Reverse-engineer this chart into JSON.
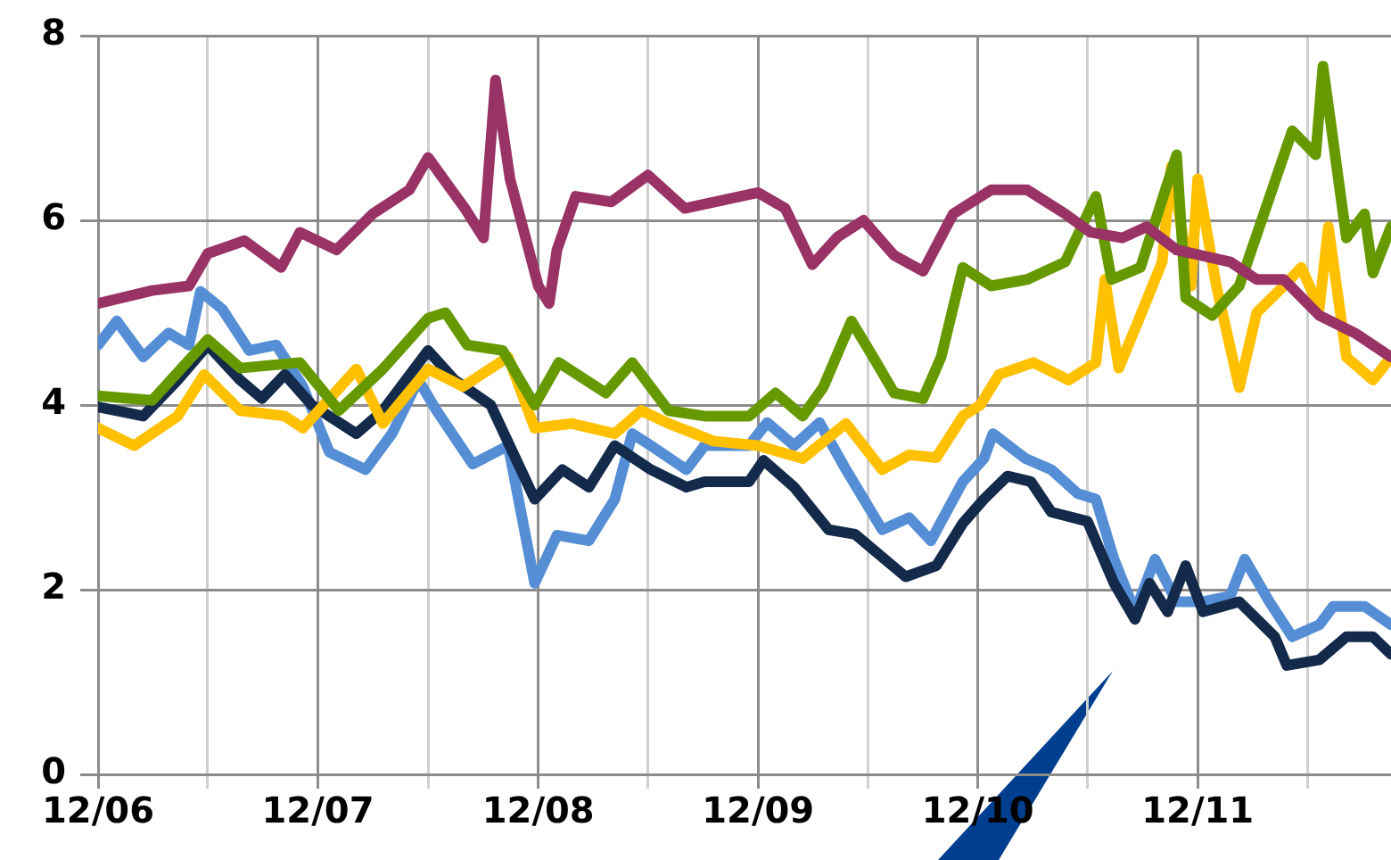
{
  "chart_data": {
    "type": "line",
    "xlim": [
      "2006-12-01",
      "2012-10-17"
    ],
    "ylim": [
      0,
      8
    ],
    "yticks": [
      0,
      2,
      4,
      6,
      8
    ],
    "xticks": [
      {
        "value": "2006-12-01",
        "label": "12/06"
      },
      {
        "value": "2007-06-01",
        "label": null
      },
      {
        "value": "2007-12-01",
        "label": "12/07"
      },
      {
        "value": "2008-06-01",
        "label": null
      },
      {
        "value": "2008-12-01",
        "label": "12/08"
      },
      {
        "value": "2009-06-01",
        "label": null
      },
      {
        "value": "2009-12-01",
        "label": "12/09"
      },
      {
        "value": "2010-06-01",
        "label": null
      },
      {
        "value": "2010-12-01",
        "label": "12/10"
      },
      {
        "value": "2011-06-01",
        "label": null
      },
      {
        "value": "2011-12-01",
        "label": "12/11"
      },
      {
        "value": "2012-06-01",
        "label": null
      }
    ],
    "grid": true,
    "legend": false,
    "marker": "none",
    "line_style": "solid",
    "series": [
      {
        "color": "#993366",
        "x": [
          "2006-12-01",
          "2007-03-01",
          "2007-05-01",
          "2007-06-01",
          "2007-08-01",
          "2007-10-01",
          "2007-11-01",
          "2008-01-01",
          "2008-03-01",
          "2008-05-01",
          "2008-06-01",
          "2008-08-01",
          "2008-09-01",
          "2008-09-21",
          "2008-10-15",
          "2008-12-01",
          "2008-12-19",
          "2009-01-01",
          "2009-02-01",
          "2009-04-01",
          "2009-06-01",
          "2009-08-01",
          "2009-12-01",
          "2010-01-15",
          "2010-03-01",
          "2010-04-12",
          "2010-05-25",
          "2010-07-15",
          "2010-09-01",
          "2010-10-21",
          "2010-12-23",
          "2011-02-21",
          "2011-04-25",
          "2011-06-06",
          "2011-07-29",
          "2011-09-07",
          "2011-10-27",
          "2012-01-24",
          "2012-03-08",
          "2012-04-22",
          "2012-06-20",
          "2012-08-18",
          "2012-10-17"
        ],
        "values": [
          5.1,
          5.24,
          5.29,
          5.64,
          5.78,
          5.49,
          5.87,
          5.68,
          6.07,
          6.33,
          6.68,
          6.13,
          5.81,
          7.52,
          6.45,
          5.29,
          5.1,
          5.68,
          6.26,
          6.2,
          6.49,
          6.13,
          6.3,
          6.13,
          5.52,
          5.82,
          6.0,
          5.62,
          5.45,
          6.07,
          6.33,
          6.33,
          6.07,
          5.87,
          5.81,
          5.93,
          5.68,
          5.55,
          5.36,
          5.36,
          4.97,
          4.78,
          4.52
        ]
      },
      {
        "color": "#669900",
        "x": [
          "2006-12-01",
          "2007-03-01",
          "2007-06-01",
          "2007-07-25",
          "2007-11-01",
          "2008-01-05",
          "2008-03-18",
          "2008-06-01",
          "2008-06-30",
          "2008-08-05",
          "2008-10-03",
          "2008-11-25",
          "2009-01-04",
          "2009-03-23",
          "2009-05-06",
          "2009-07-05",
          "2009-09-03",
          "2009-11-16",
          "2009-12-30",
          "2010-02-13",
          "2010-03-19",
          "2010-05-05",
          "2010-06-10",
          "2010-07-15",
          "2010-09-01",
          "2010-10-01",
          "2010-11-06",
          "2010-12-23",
          "2011-02-21",
          "2011-04-25",
          "2011-06-15",
          "2011-07-11",
          "2011-08-28",
          "2011-10-27",
          "2011-11-11",
          "2011-12-25",
          "2012-02-08",
          "2012-03-23",
          "2012-05-06",
          "2012-06-14",
          "2012-06-26",
          "2012-08-04",
          "2012-09-03",
          "2012-09-17",
          "2012-10-17"
        ],
        "values": [
          4.1,
          4.05,
          4.71,
          4.4,
          4.46,
          3.94,
          4.39,
          4.94,
          5.0,
          4.65,
          4.59,
          4.0,
          4.46,
          4.13,
          4.46,
          3.94,
          3.88,
          3.88,
          4.13,
          3.88,
          4.19,
          4.91,
          4.52,
          4.13,
          4.07,
          4.52,
          5.49,
          5.29,
          5.36,
          5.55,
          6.26,
          5.36,
          5.49,
          6.71,
          5.16,
          4.97,
          5.29,
          6.13,
          6.97,
          6.71,
          7.67,
          5.81,
          6.07,
          5.43,
          5.93
        ]
      },
      {
        "color": "#ffc000",
        "x": [
          "2006-12-01",
          "2007-01-30",
          "2007-04-12",
          "2007-05-26",
          "2007-07-25",
          "2007-10-07",
          "2007-11-06",
          "2008-02-03",
          "2008-03-18",
          "2008-06-01",
          "2008-07-29",
          "2008-10-12",
          "2008-11-25",
          "2009-01-25",
          "2009-04-07",
          "2009-05-21",
          "2009-07-05",
          "2009-09-18",
          "2009-12-01",
          "2010-02-13",
          "2010-04-26",
          "2010-06-25",
          "2010-08-09",
          "2010-09-23",
          "2010-11-06",
          "2010-12-05",
          "2011-01-05",
          "2011-03-03",
          "2011-05-01",
          "2011-06-15",
          "2011-06-30",
          "2011-07-23",
          "2011-08-28",
          "2011-10-03",
          "2011-10-18",
          "2011-11-20",
          "2011-12-01",
          "2012-01-01",
          "2012-02-08",
          "2012-03-08",
          "2012-04-22",
          "2012-05-21",
          "2012-06-20",
          "2012-07-05",
          "2012-08-04",
          "2012-09-17",
          "2012-10-17"
        ],
        "values": [
          3.75,
          3.56,
          3.88,
          4.33,
          3.94,
          3.88,
          3.75,
          4.39,
          3.8,
          4.39,
          4.2,
          4.52,
          3.75,
          3.8,
          3.69,
          3.94,
          3.8,
          3.61,
          3.56,
          3.42,
          3.8,
          3.3,
          3.46,
          3.43,
          3.88,
          4.0,
          4.33,
          4.46,
          4.27,
          4.46,
          5.36,
          4.4,
          4.97,
          5.55,
          6.58,
          5.29,
          6.45,
          5.29,
          4.19,
          5.0,
          5.29,
          5.49,
          5.05,
          5.93,
          4.52,
          4.27,
          4.52
        ]
      },
      {
        "color": "#132a4a",
        "x": [
          "2006-12-01",
          "2007-02-14",
          "2007-04-12",
          "2007-06-01",
          "2007-07-25",
          "2007-08-30",
          "2007-10-07",
          "2007-11-21",
          "2008-02-03",
          "2008-03-18",
          "2008-06-01",
          "2008-07-15",
          "2008-09-13",
          "2008-11-25",
          "2009-01-10",
          "2009-02-23",
          "2009-04-07",
          "2009-06-06",
          "2009-08-04",
          "2009-09-03",
          "2009-11-16",
          "2009-12-10",
          "2010-01-30",
          "2010-03-28",
          "2010-05-11",
          "2010-08-03",
          "2010-09-23",
          "2010-11-06",
          "2010-12-11",
          "2011-01-19",
          "2011-02-27",
          "2011-04-02",
          "2011-06-01",
          "2011-07-15",
          "2011-08-19",
          "2011-09-12",
          "2011-10-12",
          "2011-11-11",
          "2011-12-10",
          "2012-02-08",
          "2012-04-07",
          "2012-04-27",
          "2012-06-20",
          "2012-08-04",
          "2012-09-17",
          "2012-10-17"
        ],
        "values": [
          3.98,
          3.88,
          4.27,
          4.65,
          4.27,
          4.07,
          4.33,
          4.0,
          3.69,
          3.94,
          4.59,
          4.27,
          4.0,
          2.98,
          3.3,
          3.11,
          3.56,
          3.3,
          3.11,
          3.17,
          3.17,
          3.4,
          3.11,
          2.65,
          2.6,
          2.14,
          2.26,
          2.72,
          2.98,
          3.23,
          3.17,
          2.84,
          2.74,
          2.07,
          1.68,
          2.07,
          1.76,
          2.26,
          1.76,
          1.87,
          1.49,
          1.18,
          1.24,
          1.49,
          1.49,
          1.3
        ]
      },
      {
        "color": "#558ed5",
        "x": [
          "2006-12-01",
          "2007-01-01",
          "2007-02-14",
          "2007-03-28",
          "2007-05-01",
          "2007-05-20",
          "2007-06-25",
          "2007-08-09",
          "2007-09-23",
          "2007-11-06",
          "2007-12-20",
          "2008-02-18",
          "2008-04-02",
          "2008-05-16",
          "2008-06-15",
          "2008-08-14",
          "2008-10-12",
          "2008-11-25",
          "2009-01-01",
          "2009-02-23",
          "2009-04-07",
          "2009-05-06",
          "2009-06-06",
          "2009-08-04",
          "2009-09-03",
          "2009-11-16",
          "2009-12-16",
          "2010-01-30",
          "2010-03-13",
          "2010-04-26",
          "2010-06-25",
          "2010-08-09",
          "2010-09-14",
          "2010-11-06",
          "2010-12-11",
          "2010-12-26",
          "2011-02-18",
          "2011-04-02",
          "2011-05-16",
          "2011-06-15",
          "2011-07-15",
          "2011-08-19",
          "2011-09-21",
          "2011-10-27",
          "2011-12-10",
          "2012-01-24",
          "2012-02-17",
          "2012-03-29",
          "2012-05-06",
          "2012-06-20",
          "2012-07-13",
          "2012-09-03",
          "2012-10-17"
        ],
        "values": [
          4.65,
          4.91,
          4.52,
          4.78,
          4.65,
          5.23,
          5.04,
          4.59,
          4.65,
          4.2,
          3.49,
          3.3,
          3.69,
          4.27,
          3.94,
          3.36,
          3.56,
          2.07,
          2.59,
          2.53,
          2.98,
          3.69,
          3.56,
          3.3,
          3.56,
          3.56,
          3.81,
          3.56,
          3.81,
          3.3,
          2.65,
          2.78,
          2.53,
          3.17,
          3.42,
          3.69,
          3.42,
          3.3,
          3.04,
          2.98,
          2.33,
          1.76,
          2.33,
          1.87,
          1.87,
          1.93,
          2.33,
          1.87,
          1.49,
          1.62,
          1.82,
          1.82,
          1.62
        ]
      }
    ]
  }
}
